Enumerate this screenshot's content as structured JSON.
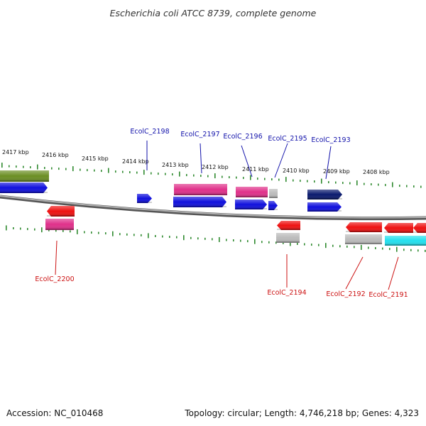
{
  "title": "Escherichia coli ATCC 8739, complete genome",
  "footer": {
    "accession": "Accession: NC_010468",
    "topology": "Topology: circular; Length: 4,746,218 bp; Genes: 4,323"
  },
  "colors": {
    "background": "#ffffff",
    "axis": "#8a8a8a",
    "tick": "#2f8a2f",
    "forward_label": "#1111aa",
    "reverse_label": "#cc1111"
  },
  "ruler": {
    "unit": "kbp",
    "ticks": [
      {
        "label": "2417 kbp"
      },
      {
        "label": "2416 kbp"
      },
      {
        "label": "2415 kbp"
      },
      {
        "label": "2414 kbp"
      },
      {
        "label": "2413 kbp"
      },
      {
        "label": "2412 kbp"
      },
      {
        "label": "2411 kbp"
      },
      {
        "label": "2410 kbp"
      },
      {
        "label": "2409 kbp"
      },
      {
        "label": "2408 kbp"
      }
    ]
  },
  "gene_labels": {
    "forward": [
      "EcolC_2198",
      "EcolC_2197",
      "EcolC_2196",
      "EcolC_2195",
      "EcolC_2193"
    ],
    "reverse": [
      "EcolC_2200",
      "EcolC_2194",
      "EcolC_2192",
      "EcolC_2191"
    ]
  },
  "tracks": {
    "forward_outer": [
      {
        "color": "#6b8e23"
      },
      {
        "color": "#e0308a"
      },
      {
        "color": "#e0308a"
      },
      {
        "color": "#bbbbbb"
      },
      {
        "color": "#0a1a6e"
      }
    ],
    "forward_inner": [
      {
        "color": "#1010dd"
      },
      {
        "color": "#1010dd"
      },
      {
        "color": "#1010dd"
      },
      {
        "color": "#1010dd"
      },
      {
        "color": "#1010dd"
      },
      {
        "color": "#1010dd"
      }
    ],
    "reverse_inner": [
      {
        "color": "#ee1111"
      },
      {
        "color": "#ee1111"
      },
      {
        "color": "#ee1111"
      },
      {
        "color": "#ee1111"
      },
      {
        "color": "#ee1111"
      }
    ],
    "reverse_outer": [
      {
        "color": "#e0308a"
      },
      {
        "color": "#bbbbbb"
      },
      {
        "color": "#bbbbbb"
      },
      {
        "color": "#22e0ee"
      }
    ]
  }
}
